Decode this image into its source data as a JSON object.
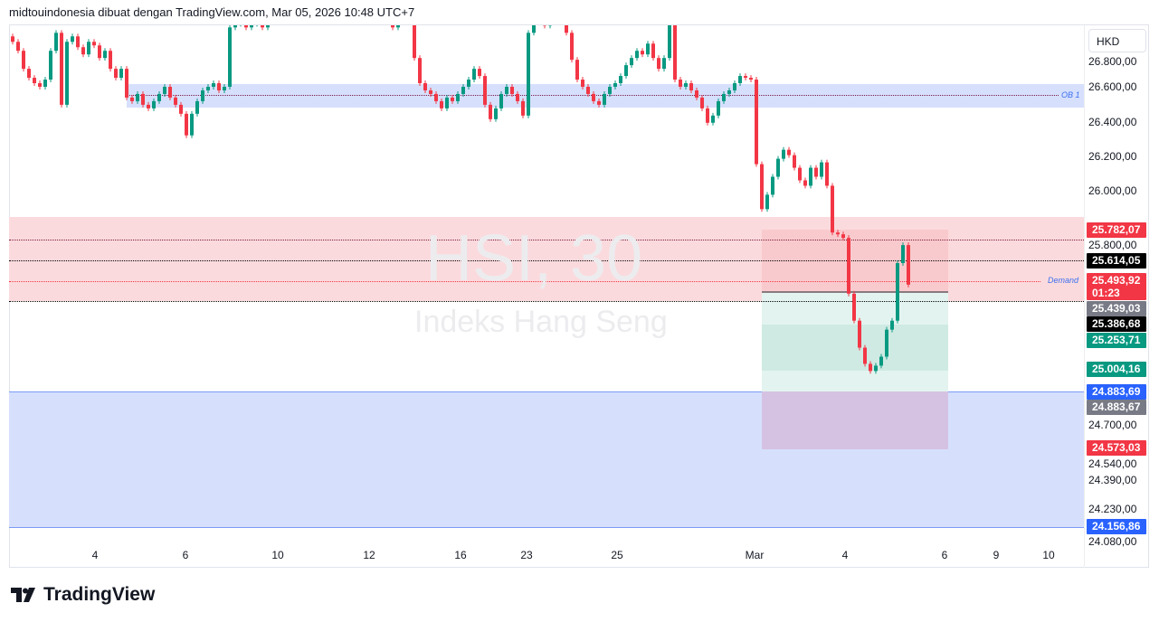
{
  "header": {
    "title": "midtouindonesia dibuat dengan TradingView.com, Mar 05, 2026 10:48 UTC+7"
  },
  "watermark": {
    "symbol": "HSI, 30",
    "name": "Indeks Hang Seng"
  },
  "currency": "HKD",
  "annotations": {
    "ob1": "OB 1",
    "demand": "Demand"
  },
  "colors": {
    "up": "#089981",
    "down": "#f23645",
    "ob_zone": "#d6e0fc",
    "supply_zone": "#fbdadd",
    "demand_zone": "#d5dffd",
    "stop": "#f7c3c7",
    "target": "#e3f4f0"
  },
  "price_axis": [
    "26.800,00",
    "26.600,00",
    "26.400,00",
    "26.200,00",
    "26.000,00",
    "25.800,00",
    "24.700,00",
    "24.540,00",
    "24.390,00",
    "24.230,00",
    "24.080,00"
  ],
  "price_tags": [
    {
      "value": "25.782,07",
      "color": "#f23645"
    },
    {
      "value": "25.614,05",
      "color": "#000000"
    },
    {
      "value": "25.493,92",
      "sub": "01:23",
      "color": "#f23645"
    },
    {
      "value": "25.439,03",
      "color": "#787b86"
    },
    {
      "value": "25.386,68",
      "color": "#000000"
    },
    {
      "value": "25.253,71",
      "color": "#089981"
    },
    {
      "value": "25.004,16",
      "color": "#089981"
    },
    {
      "value": "24.883,69",
      "color": "#2962ff"
    },
    {
      "value": "24.883,67",
      "color": "#787b86"
    },
    {
      "value": "24.573,03",
      "color": "#f23645"
    },
    {
      "value": "24.156,86",
      "color": "#2962ff"
    }
  ],
  "time_axis": [
    "4",
    "6",
    "10",
    "12",
    "16",
    "23",
    "25",
    "Mar",
    "4",
    "6",
    "9",
    "10"
  ],
  "chart_data": {
    "type": "candlestick",
    "interval": "30",
    "closes": [
      26850,
      26800,
      26700,
      26650,
      26620,
      26600,
      26640,
      26800,
      26900,
      26500,
      26850,
      26880,
      26820,
      26780,
      26850,
      26830,
      26760,
      26800,
      26700,
      26650,
      26700,
      26540,
      26520,
      26560,
      26500,
      26480,
      26520,
      26560,
      26600,
      26540,
      26500,
      26450,
      26330,
      26450,
      26520,
      26580,
      26600,
      26620,
      26580,
      26600,
      26930,
      26950,
      26950,
      26930,
      26950,
      26950,
      26930,
      27100,
      27100,
      27100,
      27100,
      27100,
      27100,
      27100,
      27100,
      27100,
      27100,
      27100,
      27100,
      27100,
      27100,
      27100,
      27100,
      27100,
      27100,
      27100,
      27100,
      27100,
      27100,
      27100,
      26930,
      27000,
      27100,
      27000,
      26760,
      26620,
      26580,
      26560,
      26520,
      26480,
      26540,
      26520,
      26560,
      26600,
      26640,
      26700,
      26660,
      26500,
      26420,
      26480,
      26560,
      26600,
      26560,
      26520,
      26440,
      26900,
      27100,
      27100,
      26940,
      27100,
      27100,
      27100,
      26900,
      26750,
      26640,
      26600,
      26560,
      26520,
      26500,
      26560,
      26600,
      26620,
      26660,
      26720,
      26760,
      26800,
      26780,
      26840,
      26760,
      26700,
      26760,
      26950,
      26640,
      26600,
      26620,
      26580,
      26540,
      26480,
      26400,
      26440,
      26520,
      26560,
      26580,
      26620,
      26660,
      26650,
      26640,
      26170,
      25920,
      26000,
      26100,
      26200,
      26250,
      26220,
      26150,
      26080,
      26050,
      26150,
      26100,
      26180,
      26050,
      25790,
      25780,
      25760,
      25450,
      25300,
      25150,
      25060,
      25020,
      25050,
      25100,
      25250,
      25300,
      25620,
      25720,
      25500
    ]
  }
}
